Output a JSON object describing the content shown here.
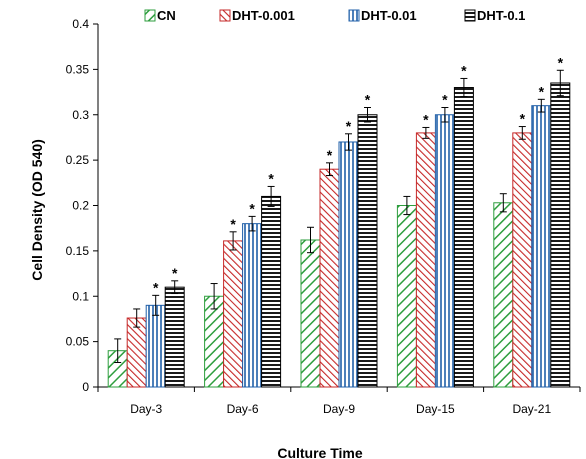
{
  "chart_data": {
    "type": "bar",
    "title": "",
    "xlabel": "Culture Time",
    "ylabel": "Cell Density (OD 540)",
    "ylim": [
      0,
      0.4
    ],
    "yticks": [
      "0",
      "0.05",
      "0.1",
      "0.15",
      "0.2",
      "0.25",
      "0.3",
      "0.35",
      "0.4"
    ],
    "categories": [
      "Day-3",
      "Day-6",
      "Day-9",
      "Day-15",
      "Day-21"
    ],
    "legend_position": "top",
    "grid": false,
    "significance_marker": "*",
    "series": [
      {
        "name": "CN",
        "pattern": "diagonal-left",
        "color": "#2e9e3e",
        "values": [
          0.04,
          0.1,
          0.162,
          0.2,
          0.203
        ],
        "errors": [
          0.013,
          0.014,
          0.014,
          0.01,
          0.01
        ],
        "significant": [
          false,
          false,
          false,
          false,
          false
        ]
      },
      {
        "name": "DHT-0.001",
        "pattern": "diagonal-right",
        "color": "#c62828",
        "values": [
          0.076,
          0.161,
          0.24,
          0.28,
          0.28
        ],
        "errors": [
          0.01,
          0.01,
          0.007,
          0.006,
          0.007
        ],
        "significant": [
          false,
          true,
          true,
          true,
          true
        ]
      },
      {
        "name": "DHT-0.01",
        "pattern": "vertical",
        "color": "#1f5fa8",
        "values": [
          0.09,
          0.18,
          0.27,
          0.3,
          0.31
        ],
        "errors": [
          0.011,
          0.008,
          0.009,
          0.008,
          0.007
        ],
        "significant": [
          true,
          true,
          true,
          true,
          true
        ]
      },
      {
        "name": "DHT-0.1",
        "pattern": "horizontal",
        "color": "#000000",
        "values": [
          0.11,
          0.21,
          0.3,
          0.33,
          0.335
        ],
        "errors": [
          0.007,
          0.011,
          0.008,
          0.01,
          0.014
        ],
        "significant": [
          true,
          true,
          true,
          true,
          true
        ]
      }
    ]
  }
}
